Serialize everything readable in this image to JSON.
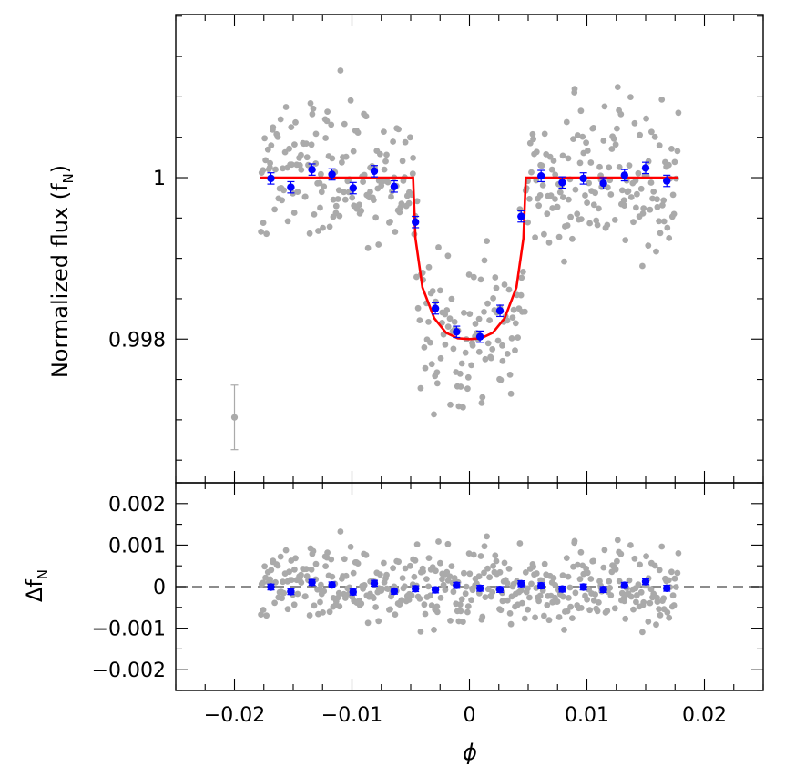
{
  "figure": {
    "top_ylabel": "Normalized flux (f",
    "top_ylabel_sub": "N",
    "top_ylabel_close": ")",
    "bottom_ylabel": "Δf",
    "bottom_ylabel_sub": "N",
    "xlabel": "ϕ"
  },
  "colors": {
    "scatter": "#aaaaaa",
    "binned": "#0000ff",
    "model": "#ff0000",
    "dashed": "#666666",
    "axes": "#000000"
  },
  "chart_data": [
    {
      "panel": "top",
      "type": "scatter",
      "title": "",
      "xlabel": "",
      "ylabel": "Normalized flux (fN)",
      "xlim": [
        -0.025,
        0.025
      ],
      "ylim": [
        0.99622,
        1.00202
      ],
      "yticks": [
        0.998,
        1
      ],
      "ytick_labels": [
        "0.998",
        "1"
      ],
      "yminor_step": 0.0005,
      "xticks": [
        -0.02,
        -0.01,
        0,
        0.01,
        0.02
      ],
      "xminor_step": 0.0025,
      "scatter_x_range": [
        -0.0178,
        0.0178
      ],
      "transit": {
        "center": 0.0,
        "half_duration": 0.0048,
        "depth": 0.002,
        "flat_bottom_frac": 0.45
      },
      "model_curve": {
        "name": "model",
        "x": [
          -0.0178,
          -0.006,
          -0.0052,
          -0.0048,
          -0.0046,
          -0.004,
          -0.003,
          -0.002,
          -0.001,
          0.0,
          0.001,
          0.002,
          0.003,
          0.004,
          0.0046,
          0.0048,
          0.0052,
          0.0178
        ],
        "y": [
          1.0,
          1.0,
          1.0,
          1.0,
          0.99925,
          0.99864,
          0.99826,
          0.99808,
          0.99801,
          0.998,
          0.99801,
          0.99808,
          0.99826,
          0.99864,
          0.99925,
          1.0,
          1.0,
          1.0
        ]
      },
      "binned": {
        "name": "binned data",
        "x": [
          -0.0169,
          -0.0152,
          -0.0134,
          -0.0117,
          -0.0099,
          -0.0081,
          -0.0064,
          -0.0046,
          -0.0029,
          -0.0011,
          0.0009,
          0.0026,
          0.0044,
          0.0061,
          0.0079,
          0.0097,
          0.0114,
          0.0132,
          0.015,
          0.0168
        ],
        "y": [
          0.99999,
          0.99988,
          1.0001,
          1.00004,
          0.99987,
          1.00008,
          0.99989,
          0.99945,
          0.99838,
          0.99809,
          0.99803,
          0.99835,
          0.99952,
          1.00002,
          0.99994,
          0.99999,
          0.99993,
          1.00003,
          1.00012,
          0.99996
        ],
        "err": [
          7e-05,
          7e-05,
          7e-05,
          7e-05,
          7e-05,
          7e-05,
          7e-05,
          7e-05,
          7e-05,
          7e-05,
          7e-05,
          7e-05,
          7e-05,
          7e-05,
          7e-05,
          7e-05,
          7e-05,
          7e-05,
          7e-05,
          7e-05
        ]
      },
      "typical_error_bar": {
        "x": -0.02,
        "y": 0.99703,
        "err": 0.0004
      }
    },
    {
      "panel": "bottom",
      "type": "scatter",
      "title": "",
      "xlabel": "ϕ",
      "ylabel": "ΔfN",
      "xlim": [
        -0.025,
        0.025
      ],
      "ylim": [
        -0.0025,
        0.0025
      ],
      "yticks": [
        -0.002,
        -0.001,
        0,
        0.001,
        0.002
      ],
      "ytick_labels": [
        "−0.002",
        "−0.001",
        "0",
        "0.001",
        "0.002"
      ],
      "yminor_step": 0.0005,
      "xticks": [
        -0.02,
        -0.01,
        0,
        0.01,
        0.02
      ],
      "xtick_labels": [
        "−0.02",
        "−0.01",
        "0",
        "0.01",
        "0.02"
      ],
      "xminor_step": 0.0025,
      "zero_line": 0,
      "binned": {
        "name": "binned residuals",
        "x": [
          -0.0169,
          -0.0152,
          -0.0134,
          -0.0117,
          -0.0099,
          -0.0081,
          -0.0064,
          -0.0046,
          -0.0029,
          -0.0011,
          0.0009,
          0.0026,
          0.0044,
          0.0061,
          0.0079,
          0.0097,
          0.0114,
          0.0132,
          0.015,
          0.0168
        ],
        "y": [
          -1e-05,
          -0.00012,
          0.0001,
          4e-05,
          -0.00013,
          8e-05,
          -0.00011,
          -5e-05,
          -8e-05,
          3e-05,
          -4e-05,
          -7e-05,
          7e-05,
          2e-05,
          -6e-05,
          -1e-05,
          -7e-05,
          3e-05,
          0.00012,
          -4e-05
        ],
        "err": [
          7e-05,
          7e-05,
          7e-05,
          7e-05,
          7e-05,
          7e-05,
          7e-05,
          7e-05,
          7e-05,
          7e-05,
          7e-05,
          7e-05,
          7e-05,
          7e-05,
          7e-05,
          7e-05,
          7e-05,
          7e-05,
          7e-05,
          7e-05
        ]
      }
    }
  ]
}
